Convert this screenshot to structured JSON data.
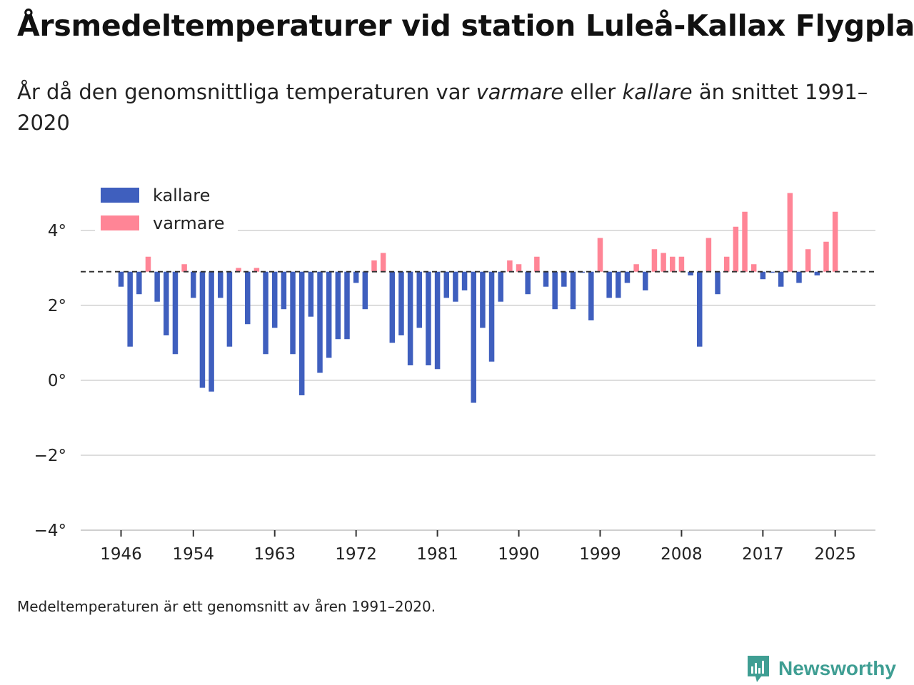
{
  "title": "Årsmedeltemperaturer vid station Luleå-Kallax Flygplats",
  "subtitle": {
    "part1": "År då den genomsnittliga temperaturen var ",
    "warm_word": "varmare",
    "part2": " eller ",
    "cold_word": "kallare",
    "part3": " än snittet 1991–2020"
  },
  "footnote": "Medeltemperaturen är ett genomsnitt av åren 1991–2020.",
  "brand": {
    "name": "Newsworthy",
    "icon": "newsworthy-logo-icon",
    "color": "#3f9e93"
  },
  "colors": {
    "kallare": "#3f5fbe",
    "varmare": "#ff8596",
    "grid": "#dddddd",
    "baseline": "#333333"
  },
  "chart_data": {
    "type": "bar",
    "ylim": [
      -4,
      5
    ],
    "ytick_values": [
      4,
      2,
      0,
      -2,
      -4
    ],
    "ytick_labels": [
      "4°",
      "2°",
      "0°",
      "−2°",
      "−4°"
    ],
    "xtick_years": [
      1946,
      1954,
      1963,
      1972,
      1981,
      1990,
      1999,
      2008,
      2017,
      2025
    ],
    "xtick_labels": [
      "1946",
      "1954",
      "1963",
      "1972",
      "1981",
      "1990",
      "1999",
      "2008",
      "2017",
      "2025"
    ],
    "baseline": 2.9,
    "legend": {
      "position": "top-left",
      "entries": [
        "kallare",
        "varmare"
      ]
    },
    "years": [
      1946,
      1947,
      1948,
      1949,
      1950,
      1951,
      1952,
      1953,
      1954,
      1955,
      1956,
      1957,
      1958,
      1959,
      1960,
      1961,
      1962,
      1963,
      1964,
      1965,
      1966,
      1967,
      1968,
      1969,
      1970,
      1971,
      1972,
      1973,
      1974,
      1975,
      1976,
      1977,
      1978,
      1979,
      1980,
      1981,
      1982,
      1983,
      1984,
      1985,
      1986,
      1987,
      1988,
      1989,
      1990,
      1991,
      1992,
      1993,
      1994,
      1995,
      1996,
      1997,
      1998,
      1999,
      2000,
      2001,
      2002,
      2003,
      2004,
      2005,
      2006,
      2007,
      2008,
      2009,
      2010,
      2011,
      2012,
      2013,
      2014,
      2015,
      2016,
      2017,
      2018,
      2019,
      2020,
      2021,
      2022,
      2023,
      2024,
      2025
    ],
    "values": [
      2.5,
      0.9,
      2.3,
      3.3,
      2.1,
      1.2,
      0.7,
      3.1,
      2.2,
      -0.2,
      -0.3,
      2.2,
      0.9,
      3.0,
      1.5,
      3.0,
      0.7,
      1.4,
      1.9,
      0.7,
      -0.4,
      1.7,
      0.2,
      0.6,
      1.1,
      1.1,
      2.6,
      1.9,
      3.2,
      3.4,
      1.0,
      1.2,
      0.4,
      1.4,
      0.4,
      0.3,
      2.2,
      2.1,
      2.4,
      -0.6,
      1.4,
      0.5,
      2.1,
      3.2,
      3.1,
      2.3,
      3.3,
      2.5,
      1.9,
      2.5,
      1.9,
      2.9,
      1.6,
      3.8,
      2.2,
      2.2,
      2.6,
      3.1,
      2.4,
      3.5,
      3.4,
      3.3,
      3.3,
      2.8,
      0.9,
      3.8,
      2.3,
      3.3,
      4.1,
      4.5,
      3.1,
      2.7,
      2.9,
      2.5,
      5.0,
      2.6,
      3.5,
      2.8,
      3.7,
      4.5
    ]
  }
}
